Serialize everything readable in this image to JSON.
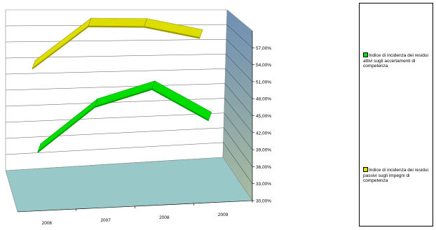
{
  "chart_data": {
    "type": "line",
    "subtype": "3d-line",
    "categories": [
      "2006",
      "2007",
      "2008",
      "2009"
    ],
    "series": [
      {
        "name": "Indice di incidenza dei residui attivi sugli accertamenti di competenza",
        "values": [
          0.384,
          0.461,
          0.491,
          0.431
        ],
        "color": "#00dd00"
      },
      {
        "name": "Indice di incidenza dei residui passivi sugli impegni di competenza",
        "values": [
          0.512,
          0.59,
          0.589,
          0.567
        ],
        "color": "#dddd00"
      }
    ],
    "y_ticks": [
      "30,00%",
      "33,00%",
      "36,00%",
      "39,00%",
      "42,00%",
      "45,00%",
      "48,00%",
      "51,00%",
      "54,00%",
      "57,00%"
    ],
    "ylim": [
      0.3,
      0.6
    ],
    "grid": true,
    "legend_position": "right",
    "colors": {
      "back_wall": "#ffffff",
      "floor": "#99c8c8",
      "side_wall_top": "#6e8fb4",
      "side_wall_bottom": "#a8bca0"
    }
  }
}
